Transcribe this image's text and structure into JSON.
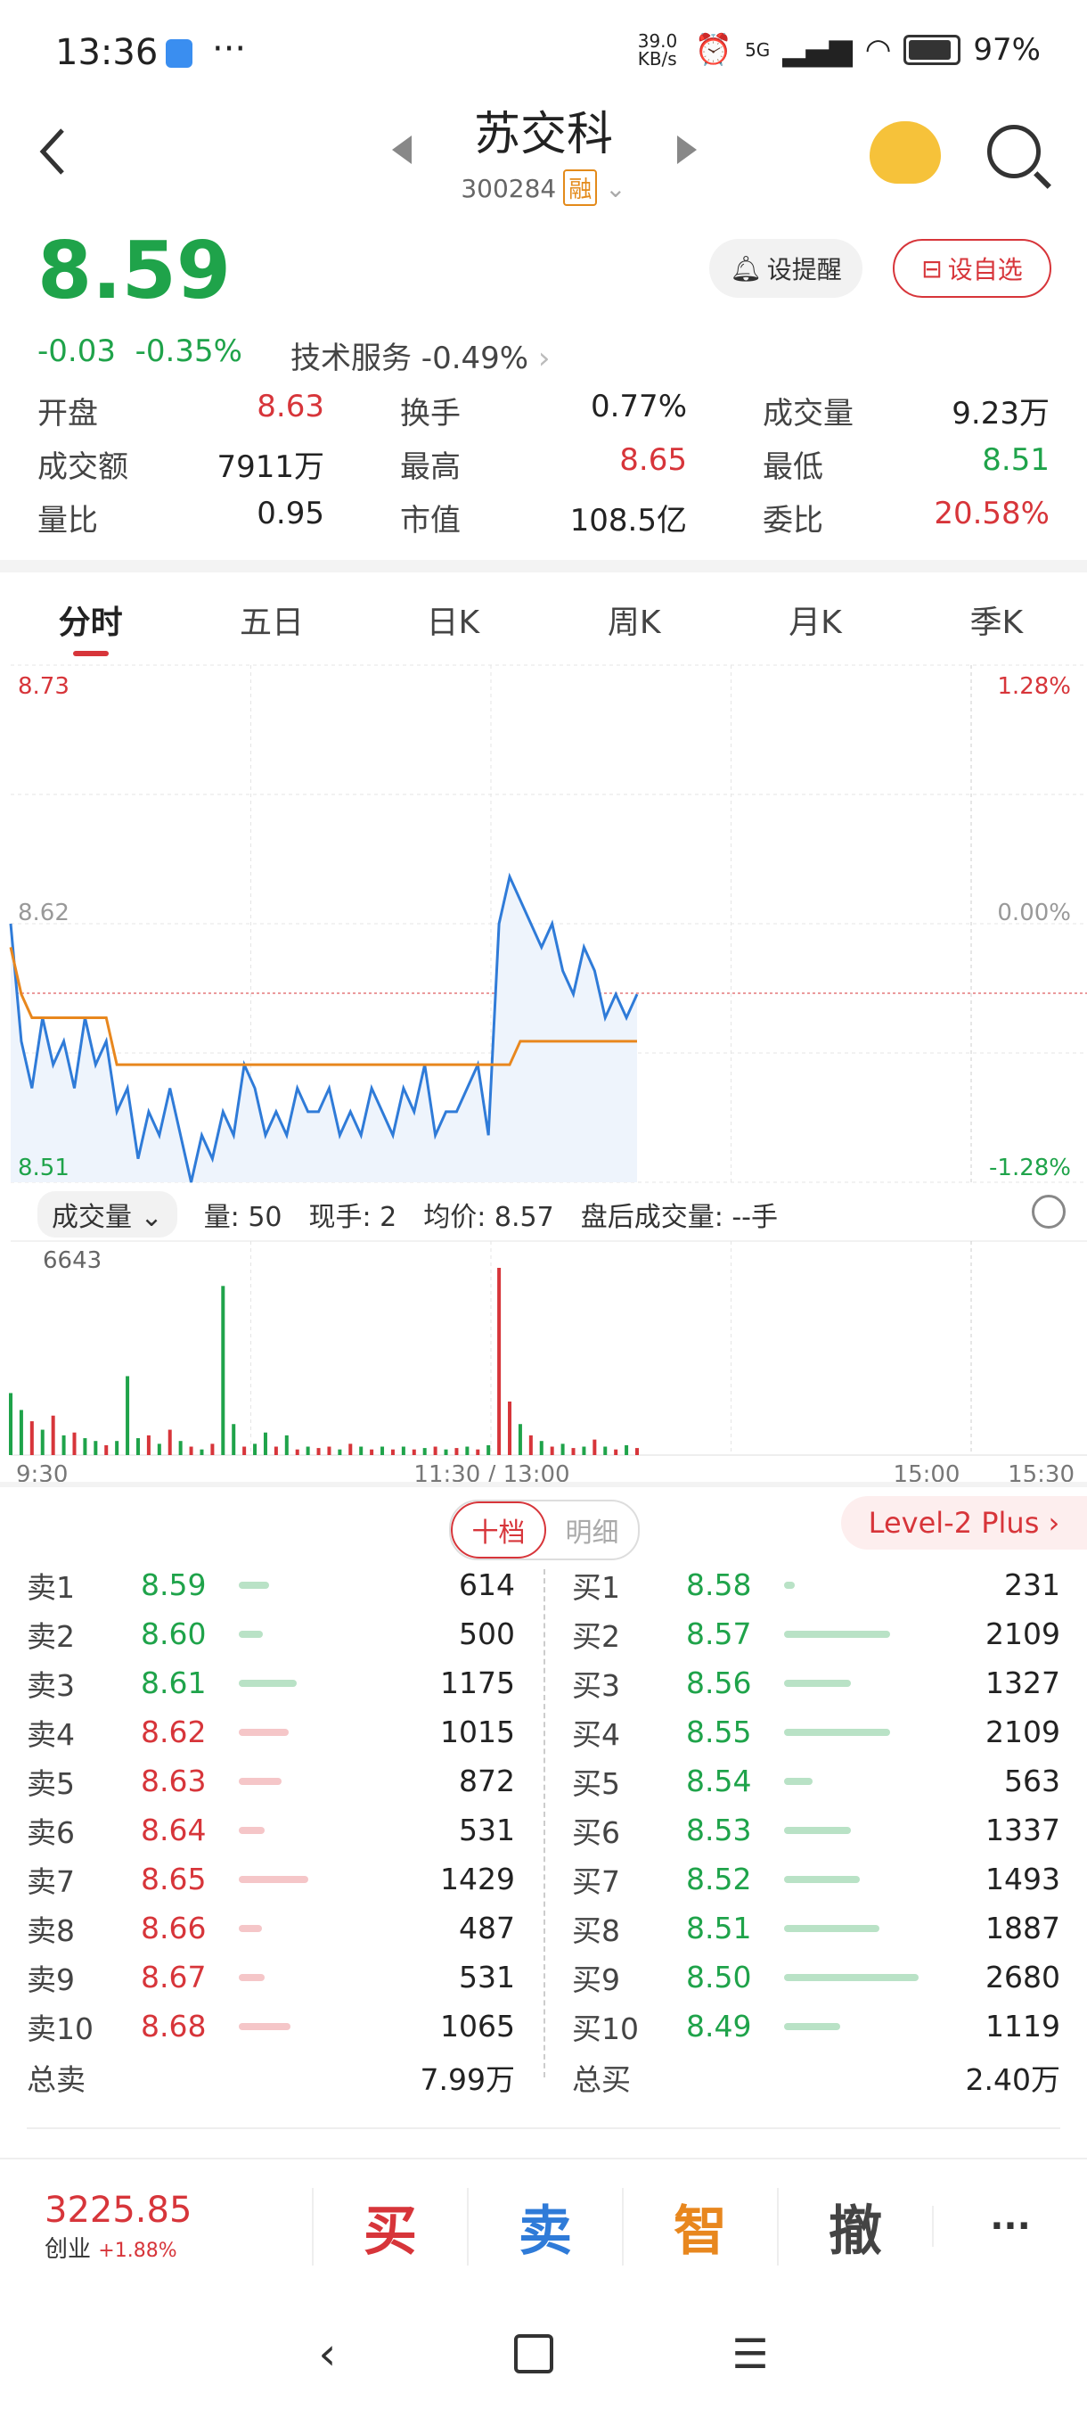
{
  "status_bar": {
    "time": "13:36",
    "dots": "···",
    "net_speed": "39.0 KB/s",
    "signal": "5G",
    "battery": "97%"
  },
  "header": {
    "title": "苏交科",
    "code": "300284",
    "tag": "融"
  },
  "quote": {
    "price": "8.59",
    "change": "-0.03",
    "change_pct": "-0.35%",
    "sector": "技术服务 -0.49%",
    "alert_label": "设提醒",
    "watch_label": "设自选",
    "stats": [
      [
        {
          "label": "开盘",
          "value": "8.63",
          "color": "red"
        },
        {
          "label": "换手",
          "value": "0.77%",
          "color": "dark"
        },
        {
          "label": "成交量",
          "value": "9.23万",
          "color": "dark"
        }
      ],
      [
        {
          "label": "成交额",
          "value": "7911万",
          "color": "dark"
        },
        {
          "label": "最高",
          "value": "8.65",
          "color": "red"
        },
        {
          "label": "最低",
          "value": "8.51",
          "color": "green"
        }
      ],
      [
        {
          "label": "量比",
          "value": "0.95",
          "color": "dark"
        },
        {
          "label": "市值",
          "value": "108.5亿",
          "color": "dark"
        },
        {
          "label": "委比",
          "value": "20.58%",
          "color": "red"
        }
      ]
    ]
  },
  "tabs": [
    "分时",
    "五日",
    "日K",
    "周K",
    "月K",
    "季K"
  ],
  "chart": {
    "y_max": "8.73",
    "y_mid": "8.62",
    "y_min": "8.51",
    "pct_max": "1.28%",
    "pct_mid": "0.00%",
    "pct_min": "-1.28%",
    "vol_max": "6643",
    "x_labels": [
      "9:30",
      "11:30 / 13:00",
      "15:00",
      "15:30"
    ]
  },
  "volume_bar": {
    "select": "成交量",
    "qty": "量: 50",
    "current": "现手: 2",
    "avg": "均价: 8.57",
    "after": "盘后成交量: --手"
  },
  "chart_data": {
    "type": "line",
    "y_range": [
      8.51,
      8.73
    ],
    "price_series": [
      8.62,
      8.57,
      8.55,
      8.58,
      8.56,
      8.57,
      8.55,
      8.58,
      8.56,
      8.57,
      8.54,
      8.55,
      8.52,
      8.54,
      8.53,
      8.55,
      8.53,
      8.51,
      8.53,
      8.52,
      8.54,
      8.53,
      8.56,
      8.55,
      8.53,
      8.54,
      8.53,
      8.55,
      8.54,
      8.54,
      8.55,
      8.53,
      8.54,
      8.53,
      8.55,
      8.54,
      8.53,
      8.55,
      8.54,
      8.56,
      8.53,
      8.54,
      8.54,
      8.55,
      8.56,
      8.53,
      8.62,
      8.64,
      8.63,
      8.62,
      8.61,
      8.62,
      8.6,
      8.59,
      8.61,
      8.6,
      8.58,
      8.59,
      8.58,
      8.59
    ],
    "avg_series": [
      8.61,
      8.59,
      8.58,
      8.58,
      8.58,
      8.58,
      8.58,
      8.58,
      8.58,
      8.58,
      8.56,
      8.56,
      8.56,
      8.56,
      8.56,
      8.56,
      8.56,
      8.56,
      8.56,
      8.56,
      8.56,
      8.56,
      8.56,
      8.56,
      8.56,
      8.56,
      8.56,
      8.56,
      8.56,
      8.56,
      8.56,
      8.56,
      8.56,
      8.56,
      8.56,
      8.56,
      8.56,
      8.56,
      8.56,
      8.56,
      8.56,
      8.56,
      8.56,
      8.56,
      8.56,
      8.56,
      8.56,
      8.56,
      8.57,
      8.57,
      8.57,
      8.57,
      8.57,
      8.57,
      8.57,
      8.57,
      8.57,
      8.57,
      8.57,
      8.57
    ],
    "volume_series": [
      2200,
      1600,
      1200,
      900,
      1400,
      700,
      800,
      600,
      500,
      350,
      500,
      2800,
      600,
      700,
      400,
      900,
      500,
      300,
      200,
      400,
      6000,
      1100,
      300,
      400,
      800,
      300,
      700,
      200,
      300,
      250,
      300,
      200,
      400,
      300,
      200,
      300,
      200,
      300,
      200,
      250,
      300,
      200,
      250,
      300,
      200,
      350,
      6643,
      1900,
      1100,
      700,
      500,
      300,
      400,
      250,
      300,
      550,
      300,
      200,
      350,
      250
    ],
    "volume_colors": [
      "g",
      "g",
      "r",
      "g",
      "r",
      "g",
      "r",
      "g",
      "g",
      "r",
      "g",
      "g",
      "g",
      "r",
      "g",
      "r",
      "g",
      "r",
      "g",
      "r",
      "g",
      "g",
      "r",
      "g",
      "g",
      "r",
      "g",
      "r",
      "g",
      "r",
      "r",
      "g",
      "r",
      "g",
      "r",
      "g",
      "r",
      "g",
      "r",
      "g",
      "r",
      "g",
      "r",
      "g",
      "r",
      "g",
      "r",
      "r",
      "g",
      "r",
      "g",
      "r",
      "g",
      "r",
      "g",
      "r",
      "g",
      "r",
      "g",
      "r"
    ]
  },
  "order_book": {
    "tabs": [
      "十档",
      "明细"
    ],
    "level2": "Level-2 Plus",
    "sell": [
      {
        "label": "卖1",
        "price": "8.59",
        "vol": "614",
        "color": "green",
        "bar": 0.2
      },
      {
        "label": "卖2",
        "price": "8.60",
        "vol": "500",
        "color": "green",
        "bar": 0.16
      },
      {
        "label": "卖3",
        "price": "8.61",
        "vol": "1175",
        "color": "green",
        "bar": 0.38
      },
      {
        "label": "卖4",
        "price": "8.62",
        "vol": "1015",
        "color": "red",
        "bar": 0.33
      },
      {
        "label": "卖5",
        "price": "8.63",
        "vol": "872",
        "color": "red",
        "bar": 0.28
      },
      {
        "label": "卖6",
        "price": "8.64",
        "vol": "531",
        "color": "red",
        "bar": 0.17
      },
      {
        "label": "卖7",
        "price": "8.65",
        "vol": "1429",
        "color": "red",
        "bar": 0.46
      },
      {
        "label": "卖8",
        "price": "8.66",
        "vol": "487",
        "color": "red",
        "bar": 0.15
      },
      {
        "label": "卖9",
        "price": "8.67",
        "vol": "531",
        "color": "red",
        "bar": 0.17
      },
      {
        "label": "卖10",
        "price": "8.68",
        "vol": "1065",
        "color": "red",
        "bar": 0.34
      }
    ],
    "buy": [
      {
        "label": "买1",
        "price": "8.58",
        "vol": "231",
        "color": "green",
        "bar": 0.07
      },
      {
        "label": "买2",
        "price": "8.57",
        "vol": "2109",
        "color": "green",
        "bar": 0.7
      },
      {
        "label": "买3",
        "price": "8.56",
        "vol": "1327",
        "color": "green",
        "bar": 0.44
      },
      {
        "label": "买4",
        "price": "8.55",
        "vol": "2109",
        "color": "green",
        "bar": 0.7
      },
      {
        "label": "买5",
        "price": "8.54",
        "vol": "563",
        "color": "green",
        "bar": 0.19
      },
      {
        "label": "买6",
        "price": "8.53",
        "vol": "1337",
        "color": "green",
        "bar": 0.44
      },
      {
        "label": "买7",
        "price": "8.52",
        "vol": "1493",
        "color": "green",
        "bar": 0.5
      },
      {
        "label": "买8",
        "price": "8.51",
        "vol": "1887",
        "color": "green",
        "bar": 0.63
      },
      {
        "label": "买9",
        "price": "8.50",
        "vol": "2680",
        "color": "green",
        "bar": 0.89
      },
      {
        "label": "买10",
        "price": "8.49",
        "vol": "1119",
        "color": "green",
        "bar": 0.37
      }
    ],
    "total_sell_label": "总卖",
    "total_sell": "7.99万",
    "total_buy_label": "总买",
    "total_buy": "2.40万"
  },
  "bottom": {
    "index_value": "3225.85",
    "index_name": "创业",
    "index_change": "+1.88%",
    "buy": "买",
    "sell": "卖",
    "smart": "智",
    "cancel": "撤",
    "more": "···"
  },
  "colors": {
    "red": "#d7353a",
    "green": "#1fa34a",
    "orange": "#e8871e",
    "blue": "#2f7bd8"
  }
}
